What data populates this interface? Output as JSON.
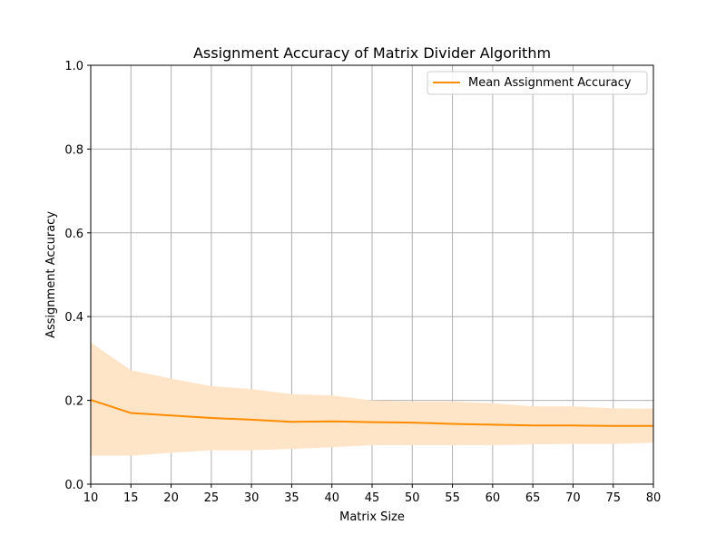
{
  "chart_data": {
    "type": "line",
    "title": "Assignment Accuracy of Matrix Divider Algorithm",
    "xlabel": "Matrix Size",
    "ylabel": "Assignment Accuracy",
    "xlim": [
      10,
      80
    ],
    "ylim": [
      0.0,
      1.0
    ],
    "xticks": [
      10,
      15,
      20,
      25,
      30,
      35,
      40,
      45,
      50,
      55,
      60,
      65,
      70,
      75,
      80
    ],
    "yticks": [
      0.0,
      0.2,
      0.4,
      0.6,
      0.8,
      1.0
    ],
    "grid": true,
    "legend_position": "top-right",
    "series": [
      {
        "name": "Mean Assignment Accuracy",
        "color": "#ff8c00",
        "band_color": "#ffe5c8",
        "x": [
          10,
          15,
          20,
          25,
          30,
          35,
          40,
          45,
          50,
          55,
          60,
          65,
          70,
          75,
          80
        ],
        "values": [
          0.201,
          0.17,
          0.164,
          0.158,
          0.154,
          0.149,
          0.15,
          0.148,
          0.147,
          0.144,
          0.142,
          0.14,
          0.14,
          0.139,
          0.139
        ],
        "lower": [
          0.068,
          0.068,
          0.075,
          0.081,
          0.081,
          0.084,
          0.088,
          0.093,
          0.093,
          0.093,
          0.093,
          0.095,
          0.096,
          0.096,
          0.099
        ],
        "upper": [
          0.338,
          0.272,
          0.252,
          0.234,
          0.227,
          0.215,
          0.212,
          0.2,
          0.197,
          0.197,
          0.193,
          0.186,
          0.186,
          0.181,
          0.18
        ]
      }
    ]
  }
}
